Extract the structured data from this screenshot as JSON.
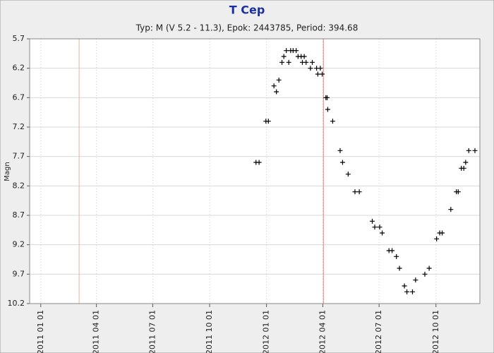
{
  "chart_data": {
    "type": "scatter",
    "title": "T Cep",
    "subtitle": "Typ: M (V 5.2 - 11.3), Epok: 2443785, Period: 394.68",
    "y_label": "Magn",
    "color": "#000000",
    "grid": true,
    "y_inverted": true,
    "ylim": [
      5.7,
      10.2
    ],
    "yticks": [
      5.7,
      6.2,
      6.7,
      7.2,
      7.7,
      8.2,
      8.7,
      9.2,
      9.7,
      10.2
    ],
    "xlim": [
      "2010 12 14",
      "2012 12 11"
    ],
    "xticks": [
      "2011 01 01",
      "2011 04 01",
      "2011 07 01",
      "2011 10 01",
      "2012 01 01",
      "2012 04 01",
      "2012 07 01",
      "2012 10 01"
    ],
    "vlines": [
      {
        "x": "2011 03 04",
        "color": "#f2b28c"
      },
      {
        "x": "2012 04 02",
        "color": "#e8826e"
      }
    ],
    "x": [
      "2011 12 15",
      "2011 12 20",
      "2011 12 31",
      "2012 01 04",
      "2012 01 13",
      "2012 01 17",
      "2012 01 21",
      "2012 01 26",
      "2012 01 29",
      "2012 02 02",
      "2012 02 06",
      "2012 02 09",
      "2012 02 13",
      "2012 02 18",
      "2012 02 21",
      "2012 02 26",
      "2012 02 28",
      "2012 03 02",
      "2012 03 05",
      "2012 03 12",
      "2012 03 15",
      "2012 03 22",
      "2012 03 24",
      "2012 03 28",
      "2012 03 31",
      "2012 04 06",
      "2012 04 08",
      "2012 04 09",
      "2012 04 17",
      "2012 04 29",
      "2012 05 03",
      "2012 05 12",
      "2012 05 23",
      "2012 05 30",
      "2012 06 20",
      "2012 06 24",
      "2012 07 02",
      "2012 07 06",
      "2012 07 17",
      "2012 07 22",
      "2012 07 29",
      "2012 08 03",
      "2012 08 11",
      "2012 08 15",
      "2012 08 24",
      "2012 08 29",
      "2012 09 13",
      "2012 09 20",
      "2012 10 02",
      "2012 10 07",
      "2012 10 11",
      "2012 10 25",
      "2012 11 03",
      "2012 11 06",
      "2012 11 11",
      "2012 11 15",
      "2012 11 18",
      "2012 11 23",
      "2012 12 03"
    ],
    "values": [
      7.8,
      7.8,
      7.1,
      7.1,
      6.5,
      6.6,
      6.4,
      6.1,
      6.0,
      5.9,
      6.1,
      5.9,
      5.9,
      5.9,
      6.0,
      6.0,
      6.1,
      6.0,
      6.1,
      6.2,
      6.1,
      6.2,
      6.3,
      6.2,
      6.3,
      6.7,
      6.7,
      6.9,
      7.1,
      7.6,
      7.8,
      8.0,
      8.3,
      8.3,
      8.8,
      8.9,
      8.9,
      9.0,
      9.3,
      9.3,
      9.4,
      9.6,
      9.9,
      10.0,
      10.0,
      9.8,
      9.7,
      9.6,
      9.1,
      9.0,
      9.0,
      8.6,
      8.3,
      8.3,
      7.9,
      7.9,
      7.8,
      7.6,
      7.6
    ]
  }
}
